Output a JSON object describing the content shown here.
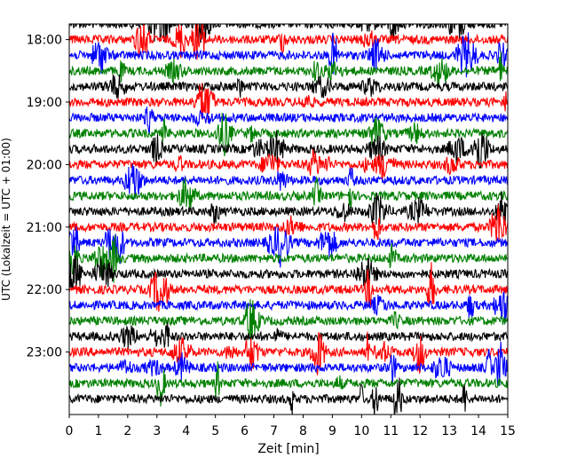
{
  "chart_data": {
    "type": "line",
    "title": "",
    "xlabel": "Zeit  [min]",
    "ylabel": "UTC (Lokalzeit = UTC + 01:00)",
    "xlim": [
      0,
      15
    ],
    "x_ticks": [
      "0",
      "1",
      "2",
      "3",
      "4",
      "5",
      "6",
      "7",
      "8",
      "9",
      "10",
      "11",
      "12",
      "13",
      "14",
      "15"
    ],
    "y_ticks": [
      "18:00",
      "19:00",
      "20:00",
      "21:00",
      "22:00",
      "23:00"
    ],
    "ylim": [
      "17:45",
      "24:00"
    ],
    "grid": false,
    "legend": "none",
    "row_interval_minutes": 15,
    "row_start": "17:45",
    "row_count": 25,
    "colors": [
      "#000000",
      "#ff0000",
      "#0000ff",
      "#008000"
    ],
    "color_cycle": "black, red, blue, green"
  }
}
